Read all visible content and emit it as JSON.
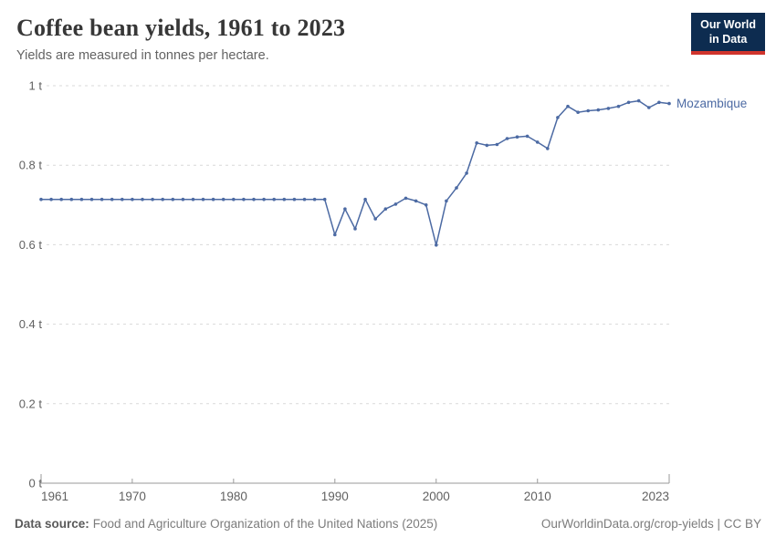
{
  "header": {
    "title": "Coffee bean yields, 1961 to 2023",
    "subtitle": "Yields are measured in tonnes per hectare."
  },
  "logo": {
    "line1": "Our World",
    "line2": "in Data"
  },
  "footer": {
    "source_label": "Data source:",
    "source_text": "Food and Agriculture Organization of the United Nations (2025)",
    "attribution": "OurWorldinData.org/crop-yields | CC BY"
  },
  "colors": {
    "accent_line": "#4c6aa3",
    "logo_bg": "#0d2c50",
    "logo_red": "#d0342c",
    "grid": "#d9d9d9",
    "axis": "#9a9a9a",
    "tick_text": "#616161"
  },
  "chart_data": {
    "type": "line",
    "title": "Coffee bean yields, 1961 to 2023",
    "subtitle": "Yields are measured in tonnes per hectare.",
    "xlabel": "",
    "ylabel": "tonnes per hectare",
    "xlim": [
      1961,
      2023
    ],
    "ylim": [
      0,
      1
    ],
    "x_ticks": [
      1961,
      1970,
      1980,
      1990,
      2000,
      2010,
      2023
    ],
    "y_ticks": [
      0,
      0.2,
      0.4,
      0.6,
      0.8,
      1
    ],
    "y_tick_labels": [
      "0 t",
      "0.2 t",
      "0.4 t",
      "0.6 t",
      "0.8 t",
      "1 t"
    ],
    "grid": "horizontal dashed",
    "legend_position": "right-of-line entity label",
    "series": [
      {
        "name": "Mozambique",
        "color": "#4c6aa3",
        "x": [
          1961,
          1962,
          1963,
          1964,
          1965,
          1966,
          1967,
          1968,
          1969,
          1970,
          1971,
          1972,
          1973,
          1974,
          1975,
          1976,
          1977,
          1978,
          1979,
          1980,
          1981,
          1982,
          1983,
          1984,
          1985,
          1986,
          1987,
          1988,
          1989,
          1990,
          1991,
          1992,
          1993,
          1994,
          1995,
          1996,
          1997,
          1998,
          1999,
          2000,
          2001,
          2002,
          2003,
          2004,
          2005,
          2006,
          2007,
          2008,
          2009,
          2010,
          2011,
          2012,
          2013,
          2014,
          2015,
          2016,
          2017,
          2018,
          2019,
          2020,
          2021,
          2022,
          2023
        ],
        "values": [
          0.714,
          0.714,
          0.714,
          0.714,
          0.714,
          0.714,
          0.714,
          0.714,
          0.714,
          0.714,
          0.714,
          0.714,
          0.714,
          0.714,
          0.714,
          0.714,
          0.714,
          0.714,
          0.714,
          0.714,
          0.714,
          0.714,
          0.714,
          0.714,
          0.714,
          0.714,
          0.714,
          0.714,
          0.714,
          0.625,
          0.69,
          0.64,
          0.714,
          0.665,
          0.69,
          0.702,
          0.717,
          0.71,
          0.7,
          0.599,
          0.71,
          0.743,
          0.78,
          0.856,
          0.85,
          0.852,
          0.867,
          0.871,
          0.873,
          0.858,
          0.842,
          0.92,
          0.948,
          0.933,
          0.937,
          0.939,
          0.943,
          0.948,
          0.958,
          0.962,
          0.945,
          0.958,
          0.955
        ]
      }
    ]
  }
}
